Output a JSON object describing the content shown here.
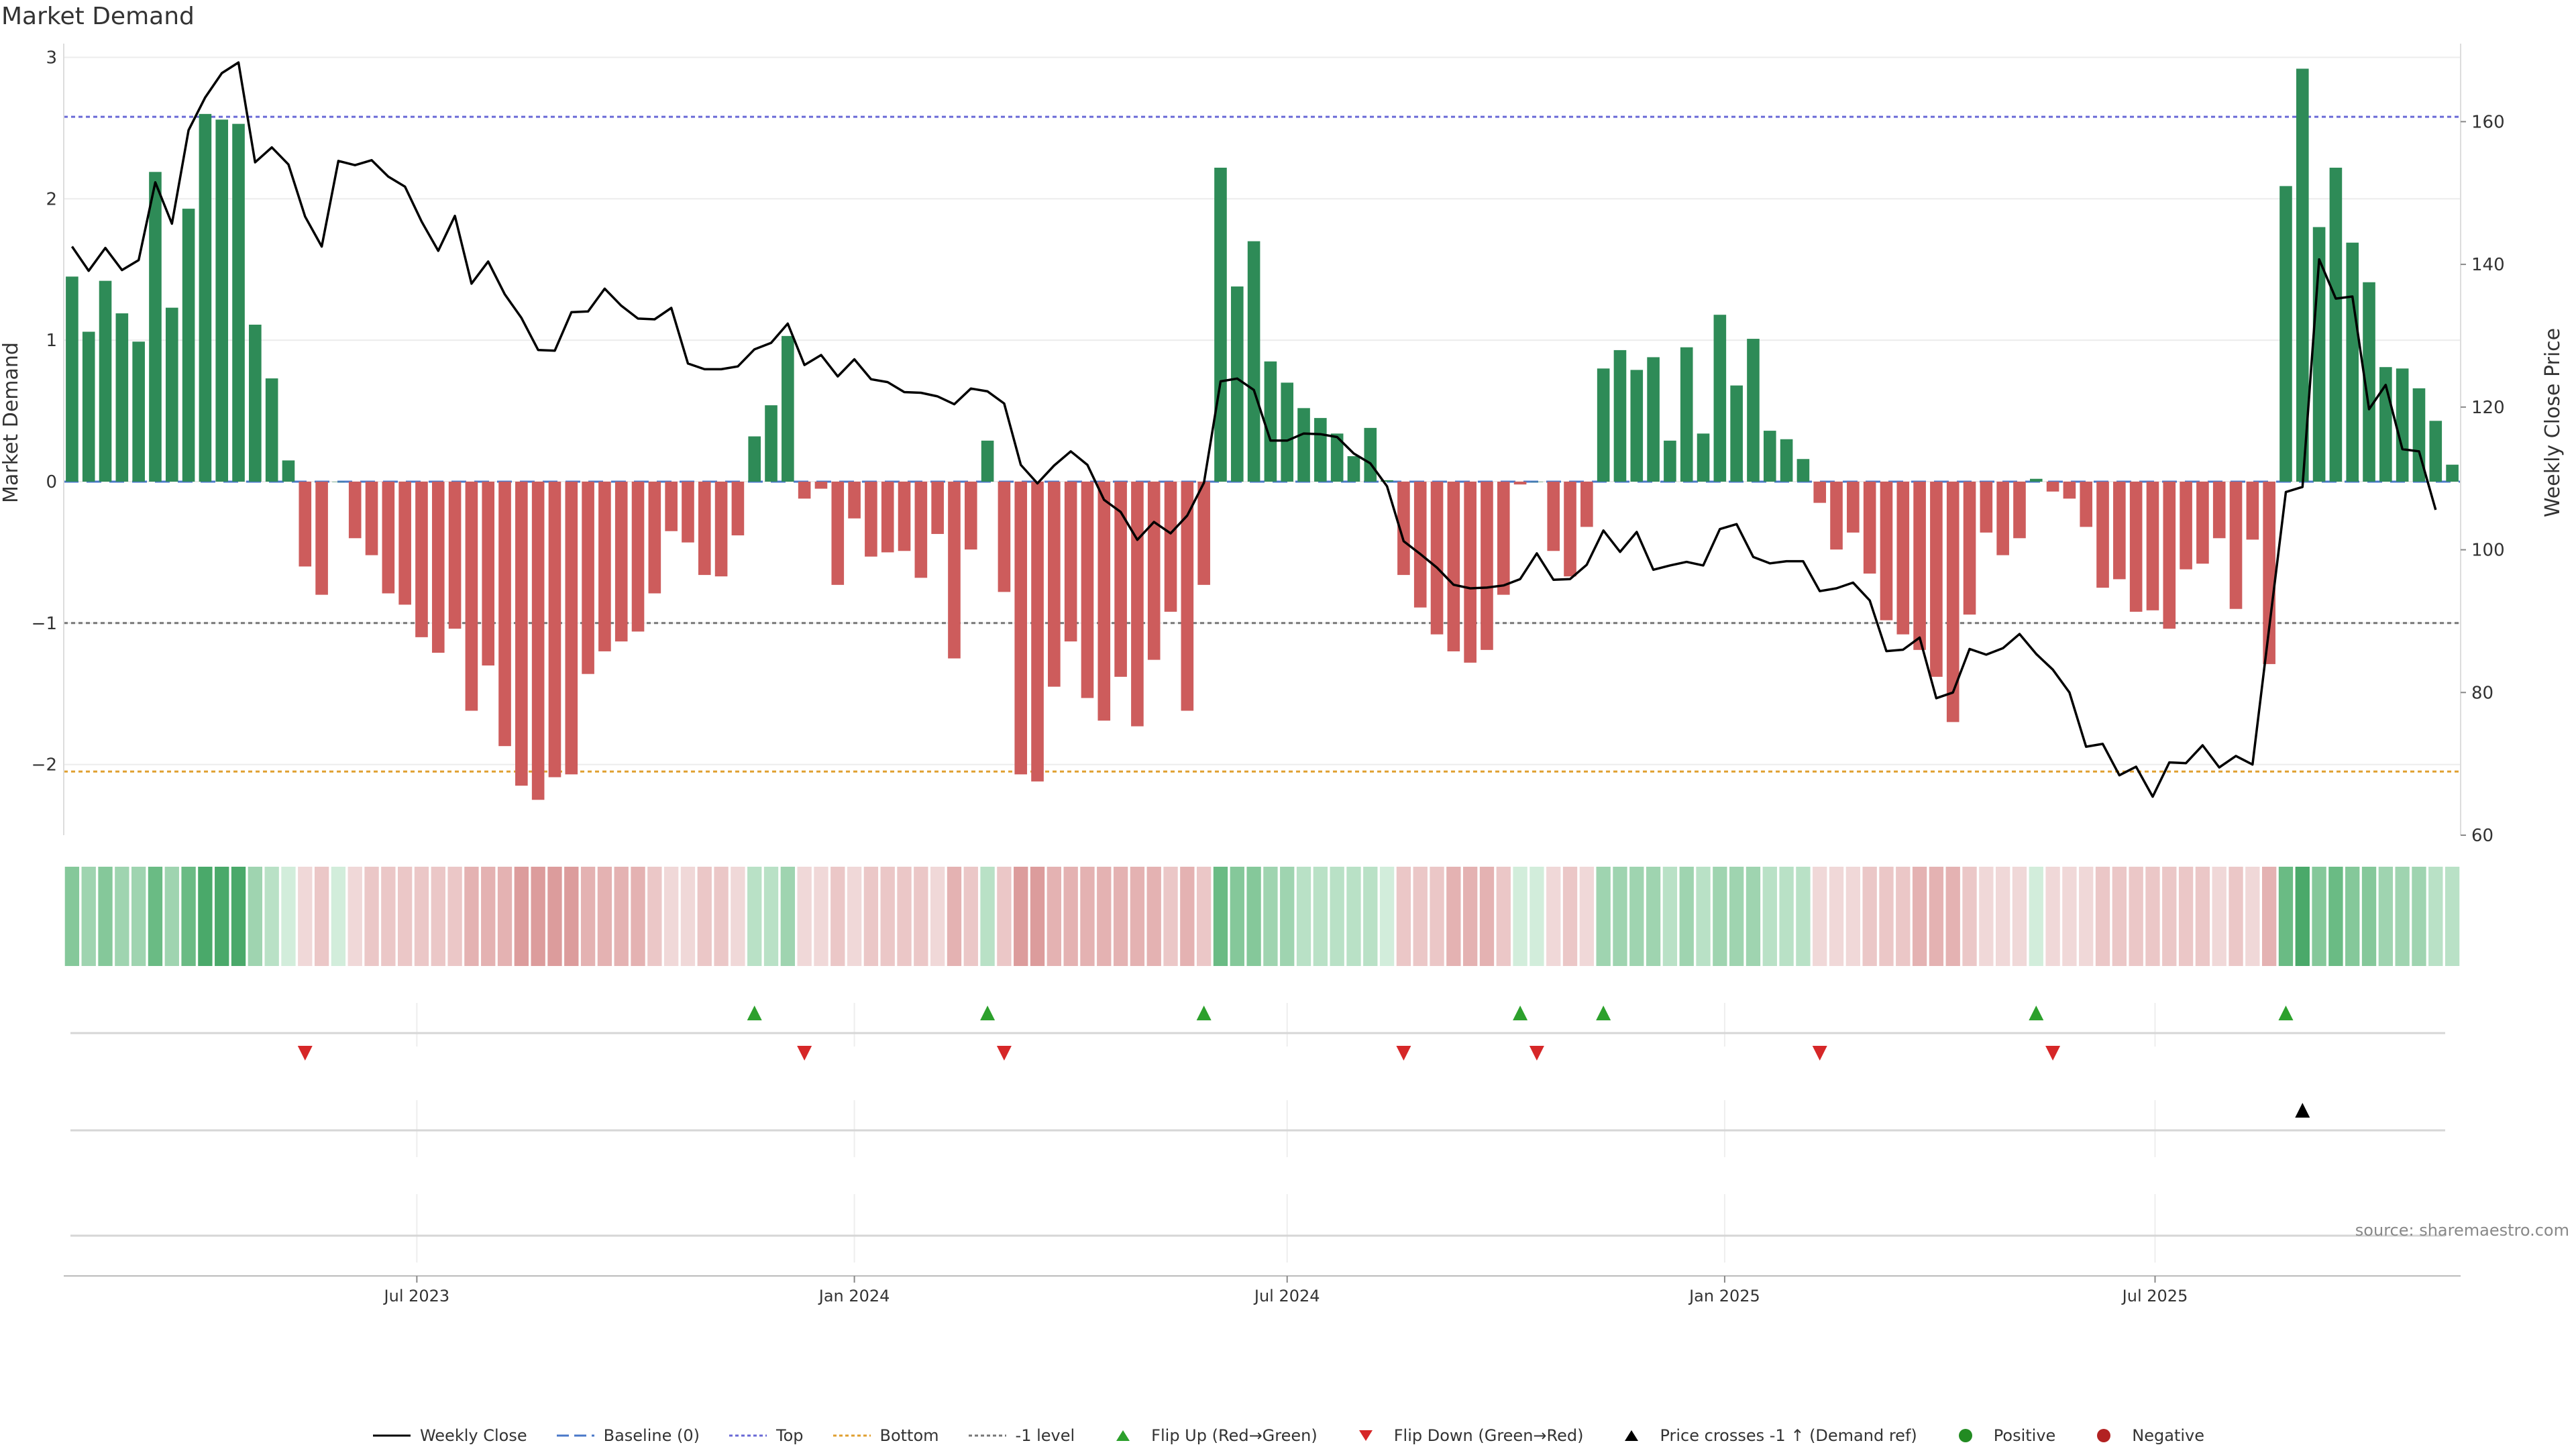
{
  "title": "Market Demand",
  "source": "source: sharemaestro.com",
  "colors": {
    "pos_bar": "#2e8b57",
    "neg_bar": "#cd5c5c",
    "price": "#000000",
    "top_line": "#6a6ad6",
    "bottom_line": "#e0a030",
    "minus1_line": "#777777",
    "baseline": "#4a78c8",
    "flip_up": "#2ca02c",
    "flip_down": "#d62728",
    "cross": "#000000",
    "positive_dot": "#228b22",
    "negative_dot": "#b22222"
  },
  "chart_data": {
    "type": "bar",
    "title": "Market Demand",
    "ylabel_left": "Market Demand",
    "ylabel_right": "Weekly Close Price",
    "left_ylim": [
      -2.5,
      3.05
    ],
    "right_ylim": [
      60,
      170
    ],
    "left_yticks": [
      3,
      2,
      1,
      0,
      -1,
      -2
    ],
    "left_ytick_labels": [
      "3",
      "2",
      "1",
      "0",
      "−1",
      "−2"
    ],
    "right_yticks": [
      160,
      140,
      120,
      100,
      80,
      60
    ],
    "x_start": "2023-02-06",
    "week_days": 7,
    "x_ticks": [
      {
        "label": "Jul 2023",
        "date": "2023-07-01"
      },
      {
        "label": "Jan 2024",
        "date": "2024-01-01"
      },
      {
        "label": "Jul 2024",
        "date": "2024-07-01"
      },
      {
        "label": "Jan 2025",
        "date": "2025-01-01"
      },
      {
        "label": "Jul 2025",
        "date": "2025-07-01"
      }
    ],
    "levels": {
      "top": 2.58,
      "bottom": -2.05,
      "minus1": -1,
      "baseline": 0
    },
    "demand": [
      1.45,
      1.06,
      1.42,
      1.19,
      0.99,
      2.19,
      1.23,
      1.93,
      2.6,
      2.56,
      2.53,
      1.11,
      0.73,
      0.15,
      -0.6,
      -0.8,
      0,
      -0.4,
      -0.52,
      -0.79,
      -0.87,
      -1.1,
      -1.21,
      -1.04,
      -1.62,
      -1.3,
      -1.87,
      -2.15,
      -2.25,
      -2.09,
      -2.07,
      -1.36,
      -1.2,
      -1.13,
      -1.06,
      -0.79,
      -0.35,
      -0.43,
      -0.66,
      -0.67,
      -0.38,
      0.32,
      0.54,
      1.03,
      -0.12,
      -0.05,
      -0.73,
      -0.26,
      -0.53,
      -0.5,
      -0.49,
      -0.68,
      -0.37,
      -1.25,
      -0.48,
      0.29,
      -0.78,
      -2.07,
      -2.12,
      -1.45,
      -1.13,
      -1.53,
      -1.69,
      -1.38,
      -1.73,
      -1.26,
      -0.92,
      -1.62,
      -0.73,
      2.22,
      1.38,
      1.7,
      0.85,
      0.7,
      0.52,
      0.45,
      0.34,
      0.18,
      0.38,
      0.01,
      -0.66,
      -0.89,
      -1.08,
      -1.2,
      -1.28,
      -1.19,
      -0.8,
      -0.02,
      0,
      -0.49,
      -0.67,
      -0.32,
      0.8,
      0.93,
      0.79,
      0.88,
      0.29,
      0.95,
      0.34,
      1.18,
      0.68,
      1.01,
      0.36,
      0.3,
      0.16,
      -0.15,
      -0.48,
      -0.36,
      -0.65,
      -0.98,
      -1.08,
      -1.19,
      -1.38,
      -1.7,
      -0.94,
      -0.36,
      -0.52,
      -0.4,
      0.02,
      -0.07,
      -0.12,
      -0.32,
      -0.75,
      -0.69,
      -0.92,
      -0.91,
      -1.04,
      -0.62,
      -0.58,
      -0.4,
      -0.9,
      -0.41,
      -1.29,
      2.09,
      2.92,
      1.8,
      2.22,
      1.69,
      1.41,
      0.81,
      0.8,
      0.66,
      0.43,
      0.12
    ],
    "price": [
      142.5,
      139.1,
      142.3,
      139.2,
      140.6,
      151.5,
      145.7,
      158.8,
      163.4,
      166.8,
      168.3,
      154.3,
      156.4,
      154.0,
      146.7,
      142.5,
      154.5,
      153.9,
      154.6,
      152.3,
      150.9,
      146.0,
      141.9,
      146.8,
      137.3,
      140.4,
      135.8,
      132.5,
      128.0,
      127.9,
      133.3,
      133.4,
      136.6,
      134.2,
      132.4,
      132.3,
      133.9,
      126.1,
      125.3,
      125.3,
      125.7,
      128.1,
      129.0,
      131.7,
      125.9,
      127.3,
      124.3,
      126.7,
      123.9,
      123.5,
      122.1,
      122.0,
      121.5,
      120.4,
      122.6,
      122.2,
      120.5,
      111.9,
      109.3,
      111.8,
      113.8,
      111.9,
      107.0,
      105.3,
      101.4,
      103.9,
      102.3,
      104.8,
      109.4,
      123.6,
      124.0,
      122.4,
      115.3,
      115.3,
      116.3,
      116.2,
      115.8,
      113.5,
      112.1,
      108.9,
      101.2,
      99.4,
      97.5,
      95.1,
      94.6,
      94.7,
      95.0,
      95.9,
      99.5,
      95.8,
      95.9,
      97.9,
      102.7,
      99.7,
      102.5,
      97.2,
      97.8,
      98.3,
      97.8,
      102.9,
      103.6,
      99.0,
      98.1,
      98.4,
      98.4,
      94.2,
      94.6,
      95.4,
      92.9,
      85.8,
      86.0,
      87.7,
      79.2,
      80.0,
      86.1,
      85.3,
      86.2,
      88.2,
      85.4,
      83.2,
      80.0,
      72.4,
      72.8,
      68.4,
      69.6,
      65.4,
      70.2,
      70.1,
      72.6,
      69.5,
      71.1,
      69.9,
      89.1,
      108.1,
      108.8,
      140.7,
      135.2,
      135.5,
      119.7,
      123.1,
      114.1,
      113.8,
      105.6
    ],
    "heat_levels": [
      3,
      2,
      3,
      2,
      2,
      4,
      2,
      4,
      5,
      5,
      5,
      2,
      1,
      0,
      -1,
      -2,
      0,
      -1,
      -2,
      -2,
      -2,
      -2,
      -2,
      -2,
      -3,
      -3,
      -3,
      -4,
      -4,
      -4,
      -4,
      -3,
      -3,
      -3,
      -3,
      -2,
      -1,
      -1,
      -2,
      -2,
      -1,
      1,
      1,
      2,
      -1,
      -1,
      -2,
      -1,
      -2,
      -2,
      -2,
      -2,
      -1,
      -3,
      -2,
      1,
      -2,
      -4,
      -4,
      -3,
      -3,
      -3,
      -3,
      -3,
      -3,
      -3,
      -2,
      -3,
      -2,
      4,
      3,
      3,
      2,
      2,
      1,
      1,
      1,
      1,
      1,
      0,
      -2,
      -2,
      -2,
      -3,
      -3,
      -3,
      -2,
      0,
      0,
      -1,
      -2,
      -1,
      2,
      2,
      2,
      2,
      1,
      2,
      1,
      2,
      2,
      2,
      1,
      1,
      1,
      -1,
      -1,
      -1,
      -2,
      -2,
      -2,
      -3,
      -3,
      -3,
      -2,
      -1,
      -1,
      -1,
      0,
      -1,
      -1,
      -1,
      -2,
      -2,
      -2,
      -2,
      -2,
      -2,
      -2,
      -1,
      -2,
      -1,
      -3,
      4,
      5,
      3,
      4,
      3,
      3,
      2,
      2,
      2,
      1,
      1
    ],
    "flip_up_weeks": [
      41,
      55,
      68,
      87,
      92,
      118,
      133
    ],
    "flip_down_weeks": [
      14,
      44,
      56,
      80,
      88,
      105,
      119
    ],
    "cross_weeks": [
      134
    ],
    "legend": [
      {
        "key": "price",
        "label": "Weekly Close"
      },
      {
        "key": "baseline",
        "label": "Baseline (0)"
      },
      {
        "key": "top",
        "label": "Top"
      },
      {
        "key": "bottom",
        "label": "Bottom"
      },
      {
        "key": "minus1",
        "label": "-1 level"
      },
      {
        "key": "flip_up",
        "label": "Flip Up (Red→Green)"
      },
      {
        "key": "flip_down",
        "label": "Flip Down (Green→Red)"
      },
      {
        "key": "cross",
        "label": "Price crosses -1 ↑ (Demand ref)"
      },
      {
        "key": "positive",
        "label": "Positive"
      },
      {
        "key": "negative",
        "label": "Negative"
      }
    ]
  }
}
